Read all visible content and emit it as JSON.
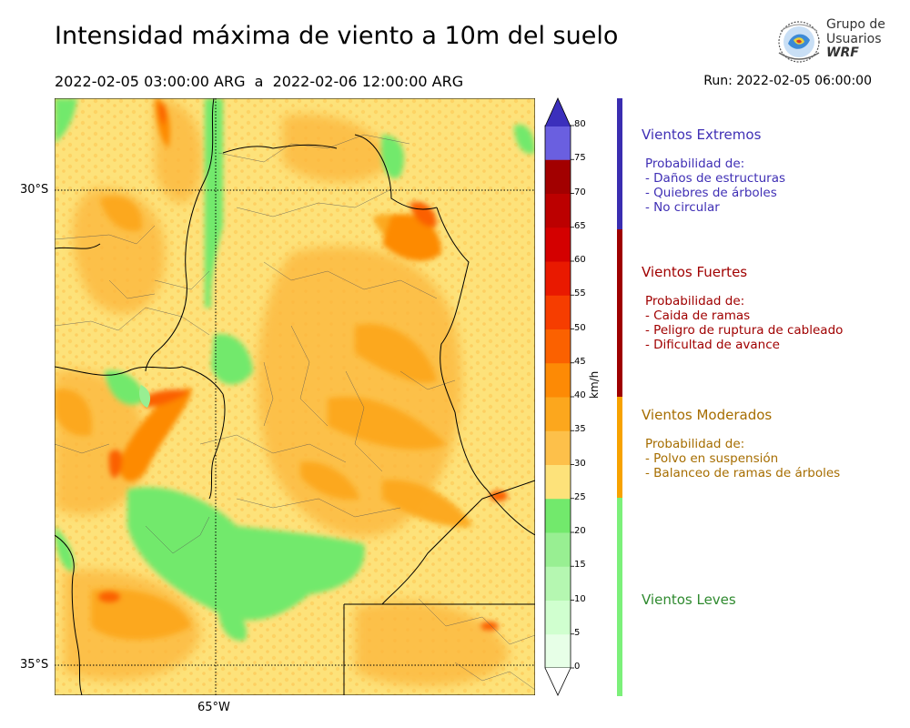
{
  "header": {
    "title": "Intensidad máxima de viento a 10m del suelo",
    "period": "2022-02-05 03:00:00 ARG  a  2022-02-06 12:00:00 ARG",
    "run": "Run: 2022-02-05 06:00:00"
  },
  "logo": {
    "line1": "Grupo de",
    "line2": "Usuarios",
    "line3": "WRF"
  },
  "map": {
    "lat_labels": [
      "30°S",
      "35°S"
    ],
    "lon_label": "65°W",
    "projection_note": ""
  },
  "colorbar": {
    "unit": "km/h",
    "ticks": [
      "0",
      "5",
      "10",
      "15",
      "20",
      "25",
      "30",
      "35",
      "40",
      "45",
      "50",
      "55",
      "60",
      "65",
      "70",
      "75",
      "80"
    ],
    "colors": [
      "#e7ffe7",
      "#d0ffcf",
      "#b5f7b1",
      "#98ef92",
      "#72e96c",
      "#fde27a",
      "#fdc04a",
      "#fca71d",
      "#fd8a05",
      "#fb6100",
      "#f63d00",
      "#e91900",
      "#d40000",
      "#bc0000",
      "#a20000",
      "#6a5fe0",
      "#4e42cf",
      "#3b2fbc"
    ]
  },
  "categories": [
    {
      "title": "Vientos Extremos",
      "color": "#3f2fb5",
      "band_color": "#3a2db0",
      "desc": [
        "Probabilidad de:",
        "- Daños de estructuras",
        "- Quiebres de árboles",
        "- No circular"
      ]
    },
    {
      "title": "Vientos Fuertes",
      "color": "#a00000",
      "band_color": "#9e0000",
      "desc": [
        "Probabilidad de:",
        "- Caida de ramas",
        "- Peligro de ruptura de cableado",
        "- Dificultad de avance"
      ]
    },
    {
      "title": "Vientos Moderados",
      "color": "#a66d00",
      "band_color": "#f7a200",
      "desc": [
        "Probabilidad de:",
        "- Polvo en suspensión",
        "- Balanceo de ramas de árboles"
      ]
    },
    {
      "title": "Vientos Leves",
      "color": "#2f8a2f",
      "band_color": "#7cf07a",
      "desc": []
    }
  ]
}
